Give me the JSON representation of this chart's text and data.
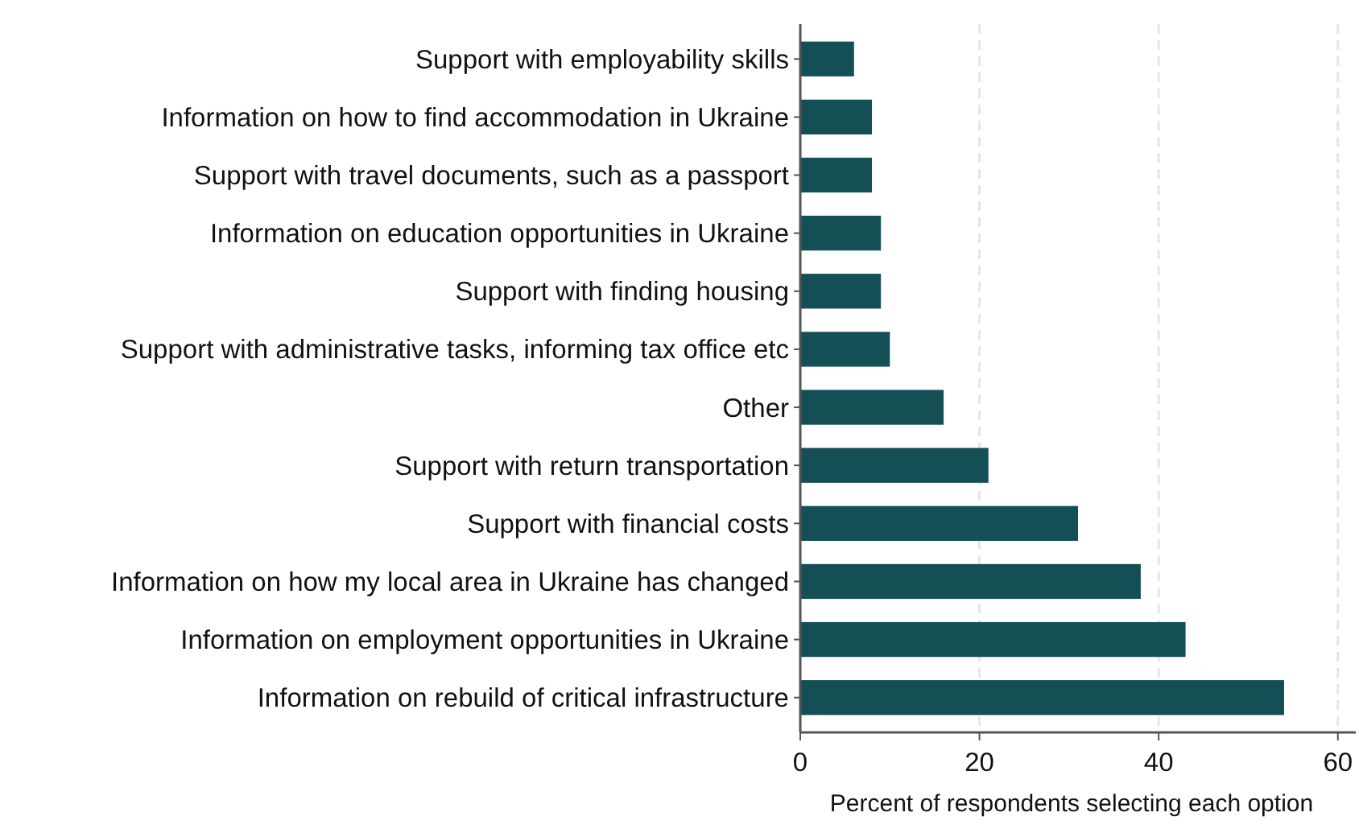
{
  "chart_data": {
    "type": "bar",
    "orientation": "horizontal",
    "categories": [
      "Support with employability skills",
      "Information on how to find accommodation in Ukraine",
      "Support with travel documents, such as a passport",
      "Information on education opportunities in Ukraine",
      "Support with finding housing",
      "Support with administrative tasks, informing tax office etc",
      "Other",
      "Support with return transportation",
      "Support with financial costs",
      "Information on how my local area in Ukraine has changed",
      "Information on employment opportunities in Ukraine",
      "Information on rebuild of critical infrastructure"
    ],
    "values": [
      6,
      8,
      8,
      9,
      9,
      10,
      16,
      21,
      31,
      38,
      43,
      54
    ],
    "color": "#134f55",
    "xlabel": "Percent of respondents selecting each option",
    "xlim": [
      0,
      62
    ],
    "xticks": [
      0,
      20,
      40,
      60
    ],
    "grid": "x"
  }
}
